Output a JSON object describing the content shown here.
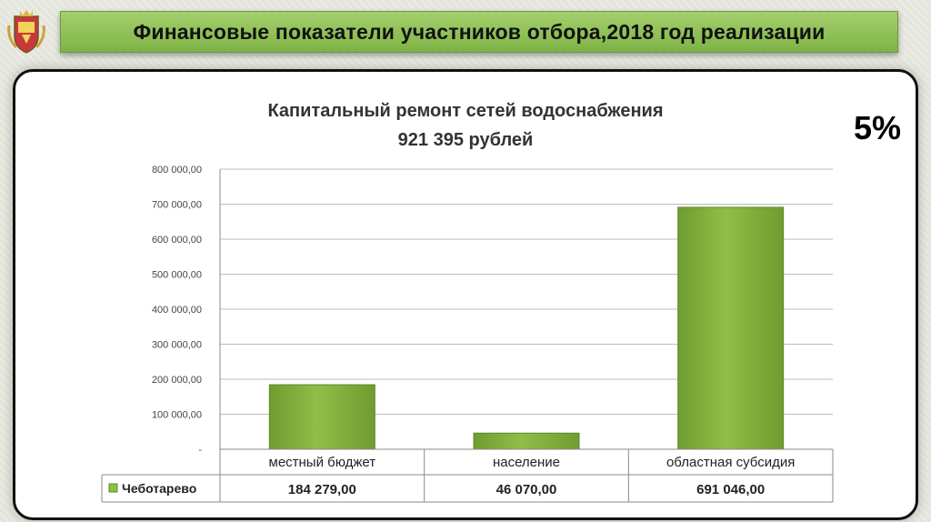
{
  "header": {
    "title": "Финансовые показатели участников отбора,2018 год реализации"
  },
  "badge": {
    "percent": "5%"
  },
  "emblem": {
    "icon": "coat-of-arms-icon"
  },
  "colors": {
    "bar": "#8fbe48",
    "bar_dark": "#6f9c30",
    "banner": "#8fc257"
  },
  "chart_data": {
    "type": "bar",
    "title": "Капитальный ремонт сетей водоснабжения",
    "subtitle": "921 395 рублей",
    "categories": [
      "местный бюджет",
      "население",
      "областная субсидия"
    ],
    "series": [
      {
        "name": "Чеботарево",
        "values": [
          184279.0,
          46070.0,
          691046.0
        ],
        "value_labels": [
          "184 279,00",
          "46 070,00",
          "691 046,00"
        ]
      }
    ],
    "ylim": [
      0,
      800000
    ],
    "yticks": [
      {
        "value": 800000,
        "label": "800 000,00"
      },
      {
        "value": 700000,
        "label": "700 000,00"
      },
      {
        "value": 600000,
        "label": "600 000,00"
      },
      {
        "value": 500000,
        "label": "500 000,00"
      },
      {
        "value": 400000,
        "label": "400 000,00"
      },
      {
        "value": 300000,
        "label": "300 000,00"
      },
      {
        "value": 200000,
        "label": "200 000,00"
      },
      {
        "value": 100000,
        "label": "100 000,00"
      },
      {
        "value": 0,
        "label": "-"
      }
    ],
    "grid": true,
    "legend": "data-table"
  }
}
